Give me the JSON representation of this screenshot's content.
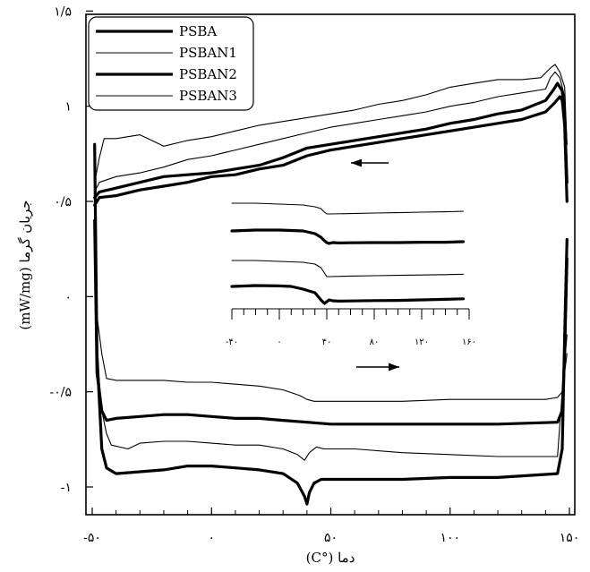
{
  "chart_data": {
    "type": "line",
    "title": "",
    "xlabel": "دما (°C)",
    "ylabel": "جریان گرما (mW/mg)",
    "xlim": [
      -50,
      155
    ],
    "ylim": [
      -1.1,
      1.5
    ],
    "x_ticks": [
      -50,
      0,
      50,
      100,
      150
    ],
    "x_tick_labels": [
      "-۵۰",
      "۰",
      "۵۰",
      "۱۰۰",
      "۱۵۰"
    ],
    "y_ticks": [
      -1,
      -0.5,
      0,
      0.5,
      1,
      1.5
    ],
    "y_tick_labels": [
      "-۱",
      "-۰/۵",
      "۰",
      "۰/۵",
      "۱",
      "۱/۵"
    ],
    "grid": false,
    "legend_position": "top-left",
    "legend": [
      "PSBA",
      "PSBAN1",
      "PSBAN2",
      "PSBAN3"
    ],
    "series": [
      {
        "name": "PSBA",
        "line_width": "thick",
        "heating": {
          "x": [
            -49,
            -48,
            -46,
            -44,
            -40,
            -30,
            -20,
            -10,
            0,
            10,
            20,
            30,
            36,
            39,
            40,
            41,
            43,
            46,
            50,
            60,
            80,
            100,
            120,
            145,
            147,
            148,
            149
          ],
          "y": [
            0.8,
            -0.3,
            -0.8,
            -0.9,
            -0.93,
            -0.92,
            -0.91,
            -0.89,
            -0.89,
            -0.9,
            -0.91,
            -0.93,
            -0.98,
            -1.05,
            -1.09,
            -1.03,
            -0.98,
            -0.96,
            -0.96,
            -0.96,
            -0.96,
            -0.95,
            -0.95,
            -0.93,
            -0.8,
            -0.2,
            0.3
          ]
        },
        "cooling": {
          "x": [
            149,
            148,
            147,
            146,
            144,
            140,
            130,
            120,
            110,
            100,
            90,
            80,
            70,
            60,
            50,
            40,
            30,
            25,
            20,
            10,
            0,
            -10,
            -20,
            -30,
            -40,
            -47,
            -49
          ],
          "y": [
            0.5,
            0.9,
            1.03,
            1.05,
            1.02,
            0.97,
            0.93,
            0.91,
            0.89,
            0.87,
            0.85,
            0.83,
            0.81,
            0.79,
            0.77,
            0.74,
            0.69,
            0.68,
            0.67,
            0.64,
            0.63,
            0.6,
            0.58,
            0.56,
            0.53,
            0.52,
            0.48
          ]
        }
      },
      {
        "name": "PSBAN1",
        "line_width": "thin",
        "heating": {
          "x": [
            -49,
            -48,
            -46,
            -44,
            -40,
            -30,
            -20,
            -10,
            0,
            10,
            20,
            30,
            37,
            40,
            43,
            46,
            50,
            60,
            80,
            100,
            120,
            140,
            145,
            147,
            149
          ],
          "y": [
            0.5,
            -0.1,
            -0.3,
            -0.43,
            -0.44,
            -0.44,
            -0.44,
            -0.45,
            -0.45,
            -0.46,
            -0.47,
            -0.49,
            -0.52,
            -0.54,
            -0.55,
            -0.55,
            -0.55,
            -0.55,
            -0.55,
            -0.54,
            -0.54,
            -0.54,
            -0.53,
            -0.5,
            -0.3
          ]
        },
        "cooling": {
          "x": [
            149,
            148,
            146,
            144,
            142,
            138,
            130,
            120,
            110,
            100,
            90,
            80,
            70,
            60,
            50,
            40,
            30,
            20,
            10,
            0,
            -10,
            -20,
            -30,
            -40,
            -45,
            -47,
            -49
          ],
          "y": [
            0.8,
            1.1,
            1.18,
            1.22,
            1.2,
            1.15,
            1.14,
            1.14,
            1.12,
            1.1,
            1.06,
            1.03,
            1.01,
            0.98,
            0.96,
            0.94,
            0.92,
            0.9,
            0.87,
            0.84,
            0.82,
            0.79,
            0.85,
            0.83,
            0.83,
            0.73,
            0.6
          ]
        }
      },
      {
        "name": "PSBAN2",
        "line_width": "thick",
        "heating": {
          "x": [
            -49,
            -48,
            -46,
            -44,
            -40,
            -30,
            -20,
            -10,
            0,
            10,
            20,
            30,
            40,
            50,
            60,
            80,
            100,
            120,
            145,
            147,
            148,
            149
          ],
          "y": [
            0.4,
            -0.4,
            -0.6,
            -0.65,
            -0.64,
            -0.63,
            -0.62,
            -0.62,
            -0.63,
            -0.64,
            -0.64,
            -0.65,
            -0.66,
            -0.67,
            -0.67,
            -0.67,
            -0.67,
            -0.67,
            -0.66,
            -0.6,
            -0.3,
            0.2
          ]
        },
        "cooling": {
          "x": [
            149,
            148,
            147,
            145,
            143,
            140,
            130,
            120,
            110,
            100,
            90,
            80,
            70,
            60,
            50,
            40,
            30,
            20,
            10,
            0,
            -10,
            -20,
            -30,
            -40,
            -47,
            -49
          ],
          "y": [
            0.6,
            0.95,
            1.08,
            1.12,
            1.08,
            1.03,
            0.98,
            0.96,
            0.93,
            0.91,
            0.88,
            0.86,
            0.84,
            0.82,
            0.8,
            0.78,
            0.73,
            0.69,
            0.67,
            0.65,
            0.64,
            0.63,
            0.6,
            0.57,
            0.55,
            0.52
          ]
        }
      },
      {
        "name": "PSBAN3",
        "line_width": "thin",
        "heating": {
          "x": [
            -49,
            -48,
            -46,
            -44,
            -42,
            -35,
            -30,
            -20,
            -10,
            0,
            10,
            20,
            30,
            36,
            39,
            41,
            44,
            47,
            50,
            60,
            80,
            100,
            120,
            145,
            147,
            149
          ],
          "y": [
            0.7,
            -0.3,
            -0.6,
            -0.72,
            -0.78,
            -0.8,
            -0.77,
            -0.76,
            -0.76,
            -0.77,
            -0.78,
            -0.78,
            -0.8,
            -0.83,
            -0.86,
            -0.82,
            -0.79,
            -0.8,
            -0.8,
            -0.8,
            -0.82,
            -0.83,
            -0.84,
            -0.84,
            -0.5,
            -0.2
          ]
        },
        "cooling": {
          "x": [
            149,
            148,
            146,
            144,
            142,
            140,
            130,
            120,
            110,
            100,
            90,
            80,
            70,
            60,
            50,
            40,
            30,
            20,
            10,
            0,
            -10,
            -20,
            -30,
            -40,
            -47,
            -49
          ],
          "y": [
            0.8,
            1.05,
            1.15,
            1.18,
            1.15,
            1.09,
            1.07,
            1.05,
            1.02,
            1.0,
            0.97,
            0.95,
            0.93,
            0.91,
            0.89,
            0.86,
            0.83,
            0.8,
            0.77,
            0.74,
            0.72,
            0.68,
            0.65,
            0.63,
            0.6,
            0.55
          ]
        }
      }
    ],
    "annotations": [
      {
        "type": "arrow",
        "direction": "left",
        "meaning": "cooling"
      },
      {
        "type": "arrow",
        "direction": "right",
        "meaning": "heating"
      }
    ],
    "inset": {
      "xlim": [
        -40,
        160
      ],
      "x_ticks": [
        -40,
        0,
        40,
        80,
        120,
        160
      ],
      "x_tick_labels": [
        "-۴۰",
        "۰",
        "۴۰",
        "۸۰",
        "۱۲۰",
        "۱۶۰"
      ],
      "x_minor_step": 10,
      "curves": [
        {
          "line_width": "thin",
          "x": [
            -40,
            -20,
            0,
            20,
            30,
            35,
            38,
            40,
            42,
            60,
            80,
            100,
            120,
            140,
            155
          ],
          "y": [
            0.54,
            0.54,
            0.535,
            0.53,
            0.52,
            0.51,
            0.49,
            0.48,
            0.48,
            0.482,
            0.485,
            0.487,
            0.49,
            0.492,
            0.495
          ]
        },
        {
          "line_width": "thick",
          "x": [
            -40,
            -20,
            0,
            20,
            30,
            35,
            38,
            40,
            42,
            45,
            50,
            60,
            80,
            100,
            120,
            140,
            155
          ],
          "y": [
            0.385,
            0.39,
            0.39,
            0.385,
            0.37,
            0.35,
            0.33,
            0.32,
            0.315,
            0.32,
            0.318,
            0.319,
            0.32,
            0.32,
            0.322,
            0.322,
            0.325
          ]
        },
        {
          "line_width": "thin",
          "x": [
            -40,
            -20,
            0,
            20,
            30,
            35,
            38,
            40,
            42,
            60,
            80,
            100,
            120,
            140,
            155
          ],
          "y": [
            0.22,
            0.22,
            0.215,
            0.21,
            0.2,
            0.18,
            0.15,
            0.13,
            0.13,
            0.133,
            0.135,
            0.137,
            0.139,
            0.141,
            0.143
          ]
        },
        {
          "line_width": "thick",
          "x": [
            -40,
            -20,
            0,
            10,
            20,
            30,
            35,
            38,
            40,
            42,
            45,
            50,
            60,
            80,
            100,
            120,
            140,
            155
          ],
          "y": [
            0.075,
            0.08,
            0.078,
            0.075,
            0.06,
            0.04,
            0.0,
            -0.02,
            -0.01,
            0.0,
            -0.005,
            -0.007,
            -0.006,
            -0.004,
            -0.003,
            0.0,
            0.003,
            0.006
          ]
        }
      ]
    }
  }
}
